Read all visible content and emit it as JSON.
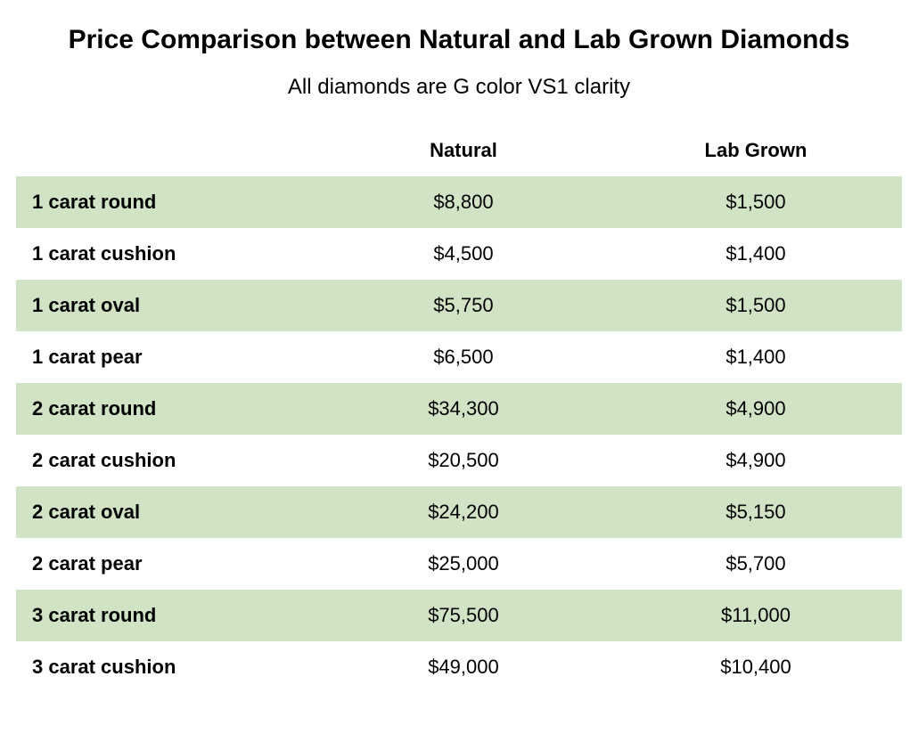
{
  "title": "Price Comparison between Natural and Lab Grown Diamonds",
  "subtitle": "All diamonds are G color VS1 clarity",
  "table": {
    "type": "table",
    "columns": [
      "",
      "Natural",
      "Lab Grown"
    ],
    "column_widths_pct": [
      34,
      33,
      33
    ],
    "column_alignments": [
      "left",
      "center",
      "center"
    ],
    "rows": [
      [
        "1 carat round",
        "$8,800",
        "$1,500"
      ],
      [
        "1 carat cushion",
        "$4,500",
        "$1,400"
      ],
      [
        "1 carat oval",
        "$5,750",
        "$1,500"
      ],
      [
        "1 carat pear",
        "$6,500",
        "$1,400"
      ],
      [
        "2 carat round",
        "$34,300",
        "$4,900"
      ],
      [
        "2 carat cushion",
        "$20,500",
        "$4,900"
      ],
      [
        "2 carat oval",
        "$24,200",
        "$5,150"
      ],
      [
        "2 carat pear",
        "$25,000",
        "$5,700"
      ],
      [
        "3 carat round",
        "$75,500",
        "$11,000"
      ],
      [
        "3 carat cushion",
        "$49,000",
        "$10,400"
      ]
    ],
    "row_shaded_color": "#d0e3c4",
    "row_plain_color": "#ffffff",
    "header_fontsize": 22,
    "header_fontweight": "bold",
    "cell_fontsize": 22,
    "first_col_fontweight": "bold",
    "title_fontsize": 30,
    "title_fontweight": "bold",
    "subtitle_fontsize": 24,
    "subtitle_fontweight": "normal",
    "background_color": "#ffffff",
    "text_color": "#000000",
    "cell_padding_v": 16,
    "cell_padding_h": 18
  }
}
